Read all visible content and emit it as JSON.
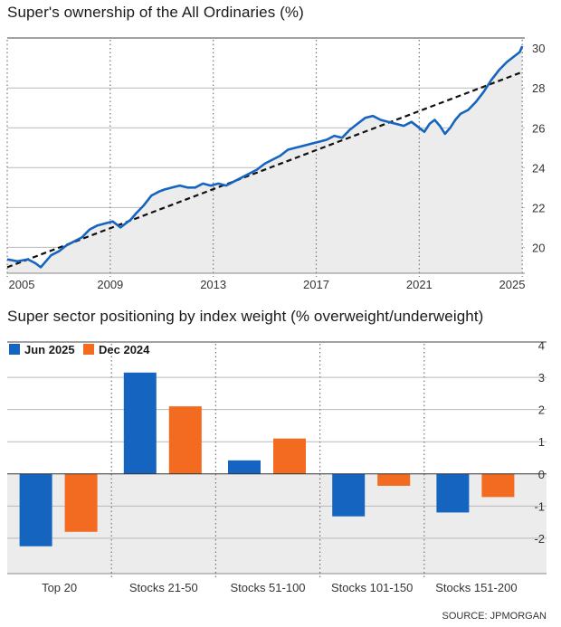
{
  "colors": {
    "primary": "#1565c0",
    "secondary": "#f26b21",
    "trend": "#111111",
    "grid": "#b9b9b9",
    "fill": "#ececec"
  },
  "chart_data": [
    {
      "type": "line",
      "title": "Super's ownership of the All Ordinaries (%)",
      "xlabel": "",
      "ylabel": "",
      "xlim": [
        2005,
        2025.1
      ],
      "ylim": [
        18.7,
        30.6
      ],
      "yticks": [
        20,
        22,
        24,
        26,
        28,
        30
      ],
      "ytick_labels": [
        "20",
        "22",
        "24",
        "26",
        "28",
        "30"
      ],
      "xticks": [
        2005,
        2009,
        2013,
        2017,
        2021,
        2025
      ],
      "xtick_labels": [
        "2005",
        "2009",
        "2013",
        "2017",
        "2021",
        "2025"
      ],
      "series": [
        {
          "name": "Ownership",
          "x": [
            2005.0,
            2005.4,
            2005.8,
            2006.1,
            2006.3,
            2006.5,
            2006.7,
            2007.0,
            2007.3,
            2007.6,
            2007.9,
            2008.2,
            2008.5,
            2008.8,
            2009.1,
            2009.4,
            2009.6,
            2009.8,
            2010.0,
            2010.3,
            2010.6,
            2010.9,
            2011.1,
            2011.4,
            2011.7,
            2012.0,
            2012.3,
            2012.6,
            2012.9,
            2013.2,
            2013.5,
            2013.8,
            2014.1,
            2014.4,
            2014.7,
            2015.0,
            2015.3,
            2015.6,
            2015.9,
            2016.2,
            2016.5,
            2016.8,
            2017.1,
            2017.4,
            2017.7,
            2018.0,
            2018.3,
            2018.6,
            2018.9,
            2019.2,
            2019.5,
            2019.8,
            2020.1,
            2020.4,
            2020.7,
            2021.0,
            2021.2,
            2021.4,
            2021.6,
            2021.8,
            2022.0,
            2022.2,
            2022.4,
            2022.6,
            2022.9,
            2023.2,
            2023.5,
            2023.8,
            2024.1,
            2024.4,
            2024.7,
            2024.9,
            2025.0
          ],
          "values": [
            19.4,
            19.3,
            19.4,
            19.2,
            19.0,
            19.3,
            19.6,
            19.8,
            20.1,
            20.3,
            20.5,
            20.9,
            21.1,
            21.2,
            21.3,
            21.0,
            21.2,
            21.4,
            21.7,
            22.1,
            22.6,
            22.8,
            22.9,
            23.0,
            23.1,
            23.0,
            23.0,
            23.2,
            23.1,
            23.2,
            23.1,
            23.3,
            23.5,
            23.7,
            23.9,
            24.2,
            24.4,
            24.6,
            24.9,
            25.0,
            25.1,
            25.2,
            25.3,
            25.4,
            25.6,
            25.5,
            25.9,
            26.2,
            26.5,
            26.6,
            26.4,
            26.3,
            26.2,
            26.1,
            26.3,
            26.0,
            25.8,
            26.2,
            26.4,
            26.1,
            25.7,
            26.0,
            26.4,
            26.7,
            26.9,
            27.3,
            27.8,
            28.4,
            28.9,
            29.3,
            29.6,
            29.8,
            30.1
          ]
        },
        {
          "name": "Trend",
          "style": "dashed",
          "x": [
            2005,
            2025
          ],
          "values": [
            19.0,
            28.8
          ]
        }
      ]
    },
    {
      "type": "bar",
      "title": "Super sector positioning by index weight (% overweight/underweight)",
      "categories": [
        "Top 20",
        "Stocks 21-50",
        "Stocks 51-100",
        "Stocks 101-150",
        "Stocks 151-200"
      ],
      "series": [
        {
          "name": "Jun 2025",
          "values": [
            -2.25,
            3.15,
            0.42,
            -1.32,
            -1.2
          ]
        },
        {
          "name": "Dec 2024",
          "values": [
            -1.8,
            2.1,
            1.1,
            -0.37,
            -0.72
          ]
        }
      ],
      "ylim": [
        -3.1,
        4.1
      ],
      "yticks": [
        4,
        3,
        2,
        1,
        0,
        -1,
        -2
      ],
      "ytick_labels": [
        "4",
        "3",
        "2",
        "1",
        "0",
        "-1",
        "-2"
      ],
      "legend_position": "top-left",
      "source": "SOURCE: JPMORGAN"
    }
  ]
}
